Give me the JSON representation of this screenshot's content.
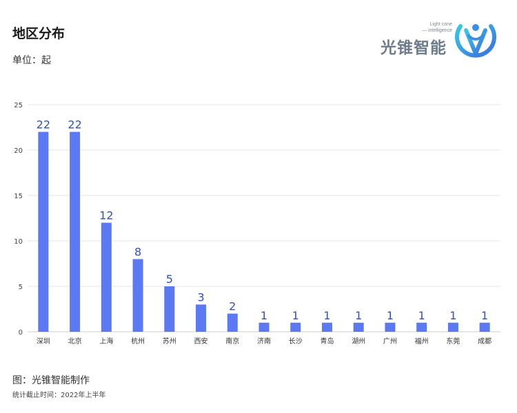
{
  "header": {
    "title": "地区分布",
    "unit": "单位：起"
  },
  "logo": {
    "name": "光锥智能",
    "en_line1": "Light cone",
    "en_line2": "— intelligence"
  },
  "footer": {
    "source": "图：光锥智能制作",
    "stat_note": "统计截止时间：2022年上半年"
  },
  "colors": {
    "bar": "#5b79f2",
    "label": "#2d4fc4",
    "grid": "#e6e6e6",
    "axis": "#cccccc"
  },
  "chart_data": {
    "type": "bar",
    "categories": [
      "深圳",
      "北京",
      "上海",
      "杭州",
      "苏州",
      "西安",
      "南京",
      "济南",
      "长沙",
      "青岛",
      "湖州",
      "广州",
      "福州",
      "东莞",
      "成都"
    ],
    "values": [
      22,
      22,
      12,
      8,
      5,
      3,
      2,
      1,
      1,
      1,
      1,
      1,
      1,
      1,
      1
    ],
    "ylim": [
      0,
      25
    ],
    "yticks": [
      0,
      5,
      10,
      15,
      20,
      25
    ],
    "grid": true
  }
}
